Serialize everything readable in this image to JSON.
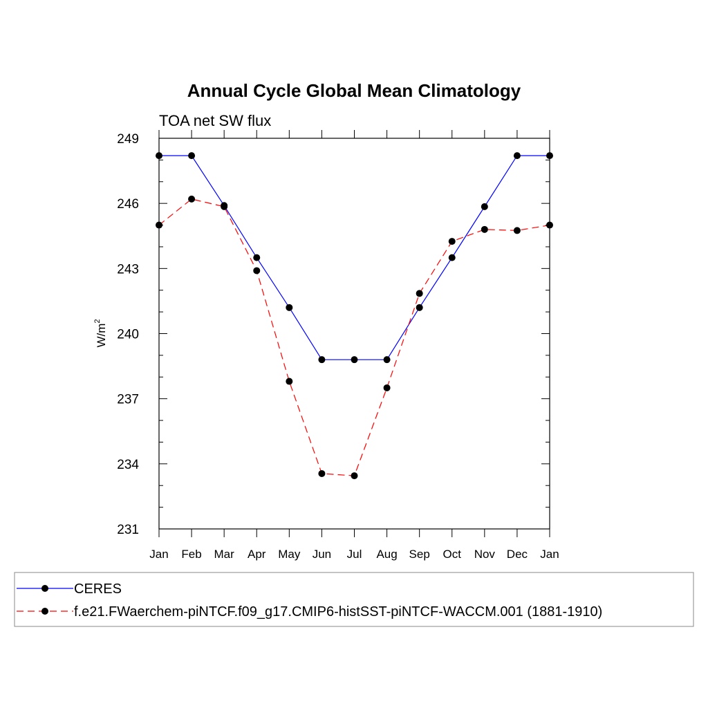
{
  "chart_data": {
    "type": "line",
    "title": "Annual Cycle Global Mean Climatology",
    "subtitle": "TOA net SW flux",
    "ylabel": "W/m",
    "ylabel_sup": "2",
    "xlabel": "",
    "categories": [
      "Jan",
      "Feb",
      "Mar",
      "Apr",
      "May",
      "Jun",
      "Jul",
      "Aug",
      "Sep",
      "Oct",
      "Nov",
      "Dec",
      "Jan"
    ],
    "ylim": [
      231,
      249
    ],
    "yticks": [
      231,
      234,
      237,
      240,
      243,
      246,
      249
    ],
    "yminor_step": 1,
    "grid": false,
    "legend_placement": "bottom",
    "series": [
      {
        "name": "CERES",
        "color": "#0000ff",
        "style": "solid",
        "marker": "filled-circle",
        "values": [
          248.2,
          248.2,
          245.9,
          243.5,
          241.2,
          238.8,
          238.8,
          238.8,
          241.2,
          243.5,
          245.85,
          248.2,
          248.2
        ]
      },
      {
        "name": "f.e21.FWaerchem-piNTCF.f09_g17.CMIP6-histSST-piNTCF-WACCM.001 (1881-1910)",
        "color": "#ff0000",
        "style": "dashed",
        "marker": "filled-circle",
        "values": [
          245.0,
          246.2,
          245.85,
          242.9,
          237.8,
          233.55,
          233.45,
          237.5,
          241.85,
          244.25,
          244.8,
          244.75,
          245.0
        ]
      }
    ]
  }
}
